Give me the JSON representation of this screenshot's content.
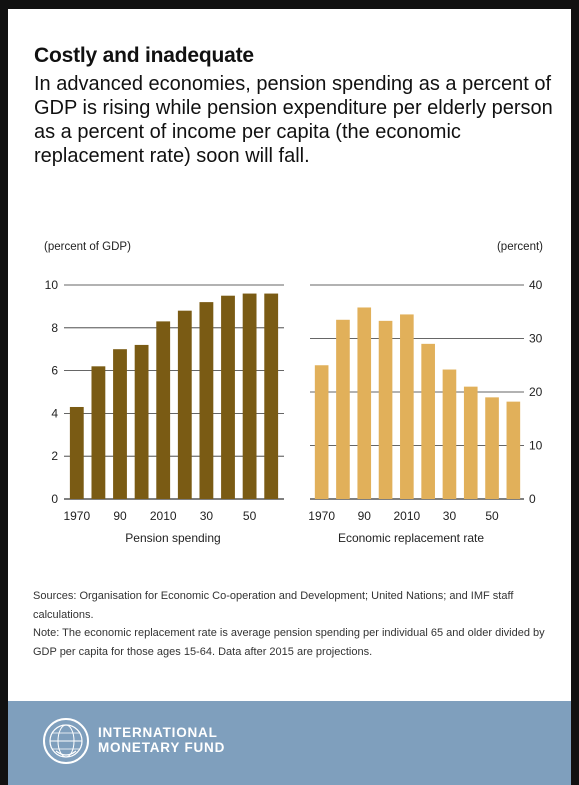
{
  "header": {
    "title": "Costly and inadequate",
    "subtitle": "In advanced economies, pension spending as a percent of GDP is rising while pension expenditure per elderly person as a percent of income per capita (the economic replacement rate) soon will fall."
  },
  "chart_data": [
    {
      "type": "bar",
      "title": "Pension spending",
      "unit_label": "(percent of GDP)",
      "categories": [
        "1970",
        "1980",
        "1990",
        "2000",
        "2010",
        "2020",
        "2030",
        "2040",
        "2050",
        "2060"
      ],
      "tick_labels": [
        "1970",
        "90",
        "2010",
        "30",
        "50"
      ],
      "values": [
        4.3,
        6.2,
        7.0,
        7.2,
        8.3,
        8.8,
        9.2,
        9.5,
        9.6,
        9.6
      ],
      "ylim": [
        0,
        10
      ],
      "yticks": [
        0,
        2,
        4,
        6,
        8,
        10
      ],
      "color": "#7a5b14",
      "axis_side": "left",
      "grid": true
    },
    {
      "type": "bar",
      "title": "Economic replacement rate",
      "unit_label": "(percent)",
      "categories": [
        "1970",
        "1980",
        "1990",
        "2000",
        "2010",
        "2020",
        "2030",
        "2040",
        "2050",
        "2060"
      ],
      "tick_labels": [
        "1970",
        "90",
        "2010",
        "30",
        "50"
      ],
      "values": [
        25,
        33.5,
        35.8,
        33.3,
        34.5,
        29,
        24.2,
        21,
        19,
        18.2
      ],
      "ylim": [
        0,
        40
      ],
      "yticks": [
        0,
        10,
        20,
        30,
        40
      ],
      "color": "#e1b05a",
      "axis_side": "right",
      "grid": true
    }
  ],
  "notes": {
    "sources": "Sources: Organisation for Economic Co-operation and Development; United Nations; and IMF staff calculations.",
    "note": "Note: The economic replacement rate is average pension spending per individual 65 and older divided by GDP per capita for those ages 15-64. Data after 2015 are projections."
  },
  "footer": {
    "org_line1": "INTERNATIONAL",
    "org_line2": "MONETARY FUND",
    "background_color": "#7f9fbd",
    "logo_icon": "imf-seal-icon"
  }
}
